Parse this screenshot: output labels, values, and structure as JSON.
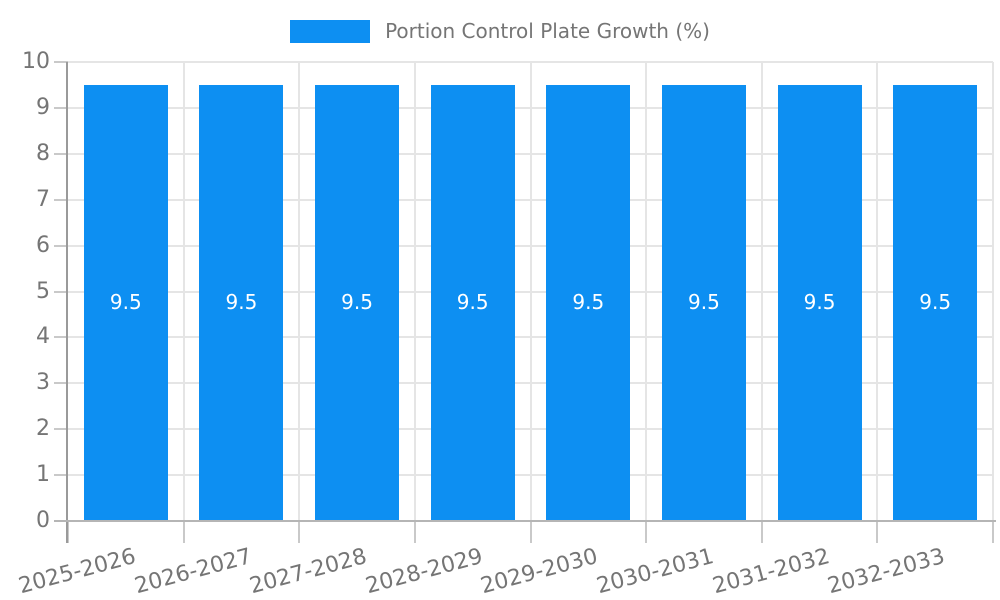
{
  "chart_data": {
    "type": "bar",
    "title": "",
    "xlabel": "",
    "ylabel": "",
    "legend": {
      "position": "top",
      "label": "Portion Control Plate Growth (%)"
    },
    "categories": [
      "2025-2026",
      "2026-2027",
      "2027-2028",
      "2028-2029",
      "2029-2030",
      "2030-2031",
      "2031-2032",
      "2032-2033"
    ],
    "series": [
      {
        "name": "Portion Control Plate Growth (%)",
        "values": [
          9.5,
          9.5,
          9.5,
          9.5,
          9.5,
          9.5,
          9.5,
          9.5
        ]
      }
    ],
    "bar_labels": [
      "9.5",
      "9.5",
      "9.5",
      "9.5",
      "9.5",
      "9.5",
      "9.5",
      "9.5"
    ],
    "ylim": [
      0,
      10
    ],
    "yticks": [
      0,
      1,
      2,
      3,
      4,
      5,
      6,
      7,
      8,
      9,
      10
    ],
    "ytick_labels": [
      "0",
      "1",
      "2",
      "3",
      "4",
      "5",
      "6",
      "7",
      "8",
      "9",
      "10"
    ],
    "grid": true,
    "x_label_rotation_deg": -15,
    "colors": {
      "bar": "#0d8ff2",
      "bar_label_text": "#ffffff",
      "axis_text": "#757575",
      "legend_text": "#757575",
      "gridline": "#e5e5e5",
      "y_axis_line": "#9a9a9a",
      "x_axis_line": "#b5b5b5",
      "tick": "#c9c9c9",
      "background": "#ffffff"
    }
  }
}
